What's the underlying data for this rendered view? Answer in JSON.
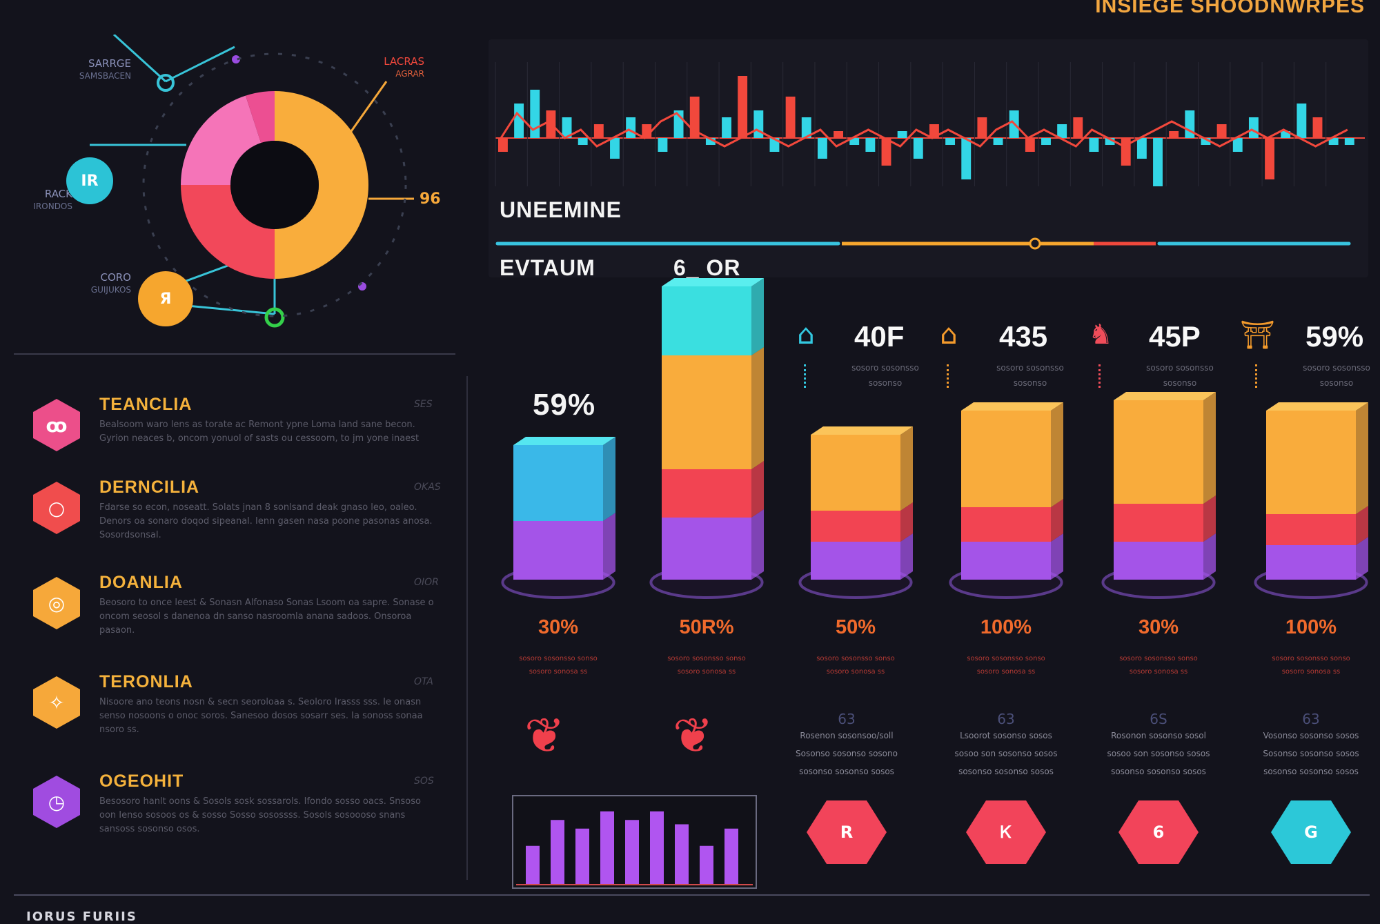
{
  "header": {
    "title": "INSIEGE SHOODNWRPES"
  },
  "donut": {
    "slices": [
      {
        "name": "orange",
        "value": 50,
        "color": "#f9ad3c"
      },
      {
        "name": "red",
        "value": 25,
        "color": "#f2485a"
      },
      {
        "name": "pink",
        "value": 20,
        "color": "#f574b8"
      },
      {
        "name": "magenta",
        "value": 5,
        "color": "#ec4f92"
      }
    ],
    "labels": [
      {
        "title": "SARRGE",
        "sub": "SAMSBACEN"
      },
      {
        "title": "LACRAS",
        "sub": "AGRAR"
      },
      {
        "title": "RACK",
        "sub": "IRONDOS"
      },
      {
        "title": "CORO",
        "sub": "GUIJUKOS"
      }
    ],
    "value_label": "96",
    "nodes": [
      {
        "text": "IR"
      },
      {
        "text": "Я"
      }
    ]
  },
  "list": {
    "items": [
      {
        "title": "TEANCLIA",
        "tag": "SES",
        "color": "#ec4f8a",
        "icon": "ꝏ",
        "body": "Bealsoom waro lens as torate ac Remont ypne Loma land sane becon. Gyrion neaces b, oncom yonuol of sasts ou cessoom, to jm yone inaest"
      },
      {
        "title": "DERNCILIA",
        "tag": "OKAS",
        "color": "#f04d4d",
        "icon": "○",
        "body": "Fdarse so econ, noseatt. Solats jnan 8 sonlsand deak gnaso leo, oaleo. Denors oa sonaro doqod sipeanal. Ienn gasen nasa poone pasonas anosa. Sosordsonsal."
      },
      {
        "title": "DOANLIA",
        "tag": "OIOR",
        "color": "#f6a83a",
        "icon": "◎",
        "body": "Beosoro to once leest & Sonasn Alfonaso Sonas Lsoom oa sapre. Sonase o oncom seosol s danenoa dn sanso nasroomla anana sadoos. Onsoroa pasaon."
      },
      {
        "title": "TERONLIA",
        "tag": "OTA",
        "color": "#f6a83a",
        "icon": "✧",
        "body": "Nisoore ano teons nosn & secn seoroloaa s. Seoloro Irasss sss. Ie onasn senso nosoons o onoc soros. Sanesoo dosos sosarr ses. Ia sonoss sonaa nsoro ss."
      },
      {
        "title": "OGEOHIT",
        "tag": "SOS",
        "color": "#a04ce0",
        "icon": "◷",
        "body": "Besosoro hanlt oons & Sosols sosk sossarols. Ifondo sosso oacs. Snsoso oon Ienso sosoos os & sosso Sosso sosossss. Sosols sosoooso snans sansoss sosonso osos."
      }
    ]
  },
  "chart_data": [
    {
      "type": "bar",
      "title": "UNEEMINE",
      "values": [
        -2,
        5,
        7,
        4,
        3,
        -1,
        2,
        -3,
        3,
        2,
        -2,
        4,
        6,
        -1,
        3,
        9,
        4,
        -2,
        6,
        3,
        -3,
        1,
        -1,
        -2,
        -4,
        1,
        -3,
        2,
        -1,
        -6,
        3,
        -1,
        4,
        -2,
        -1,
        2,
        3,
        -2,
        -1,
        -4,
        -3,
        -7,
        1,
        4,
        -1,
        2,
        -2,
        3,
        -6,
        1,
        5,
        3,
        -1,
        -1
      ],
      "line": [
        0,
        3,
        1,
        2,
        0,
        1,
        -1,
        0,
        1,
        0,
        2,
        3,
        1,
        0,
        -1,
        0,
        1,
        0,
        -1,
        0,
        1,
        -1,
        0,
        1,
        0,
        -1,
        1,
        0,
        1,
        0,
        -1,
        1,
        2,
        0,
        1,
        0,
        -1,
        1,
        0,
        -1,
        0,
        1,
        2,
        1,
        0,
        -1,
        0,
        1,
        0,
        1,
        0,
        -1,
        0,
        1
      ],
      "positive_color": "#33d6e6",
      "negative_color": "#33d6e6",
      "accent_color": "#f2483c"
    },
    {
      "type": "bar",
      "title": "mini-bars",
      "values": [
        45,
        75,
        65,
        85,
        75,
        85,
        70,
        45,
        65
      ],
      "color": "#b055f0"
    }
  ],
  "timeline": {
    "label": "EVTAUM",
    "marker_label": "6_ OR"
  },
  "stacks": {
    "headline": "59%",
    "columns": [
      {
        "pct": "30%",
        "sub": [
          "sosoro sosonsso sonso",
          "sosoro sonosa ss"
        ],
        "segments": [
          {
            "v": 85,
            "c": "#a454e8"
          },
          {
            "v": 110,
            "c": "#3ab8e8"
          }
        ],
        "top": "#55e6f0"
      },
      {
        "pct": "50R%",
        "sub": [
          "sosoro sosonsso sonso",
          "sosoro sonosa ss"
        ],
        "segments": [
          {
            "v": 90,
            "c": "#a454e8"
          },
          {
            "v": 70,
            "c": "#f24452"
          },
          {
            "v": 165,
            "c": "#f9ac3c"
          },
          {
            "v": 100,
            "c": "#3adfe0"
          }
        ],
        "top": "#5aeeee"
      },
      {
        "pct": "50%",
        "sub": [
          "sosoro sosonsso sonso",
          "sosoro sonosa ss"
        ],
        "segments": [
          {
            "v": 55,
            "c": "#a454e8"
          },
          {
            "v": 45,
            "c": "#f24452"
          },
          {
            "v": 110,
            "c": "#f9ac3c"
          }
        ],
        "top": "#fbc45a"
      },
      {
        "pct": "100%",
        "sub": [
          "sosoro sosonsso sonso",
          "sosoro sonosa ss"
        ],
        "segments": [
          {
            "v": 55,
            "c": "#a454e8"
          },
          {
            "v": 50,
            "c": "#f24452"
          },
          {
            "v": 140,
            "c": "#f9ac3c"
          }
        ],
        "top": "#fbc45a"
      },
      {
        "pct": "30%",
        "sub": [
          "sosoro sosonsso sonso",
          "sosoro sonosa ss"
        ],
        "segments": [
          {
            "v": 55,
            "c": "#a454e8"
          },
          {
            "v": 55,
            "c": "#f24452"
          },
          {
            "v": 150,
            "c": "#f9ac3c"
          }
        ],
        "top": "#fbc45a"
      },
      {
        "pct": "100%",
        "sub": [
          "sosoro sosonsso sonso",
          "sosoro sonosa ss"
        ],
        "segments": [
          {
            "v": 50,
            "c": "#a454e8"
          },
          {
            "v": 45,
            "c": "#f24452"
          },
          {
            "v": 150,
            "c": "#f9ac3c"
          }
        ],
        "top": "#fbc45a"
      }
    ]
  },
  "stats": [
    {
      "value": "40F",
      "sub": [
        "sosoro sosonsso",
        "sosonso"
      ],
      "color": "#33c8e0",
      "icon": "⌂"
    },
    {
      "value": "435",
      "sub": [
        "sosoro sosonsso",
        "sosonso"
      ],
      "color": "#f39a2c",
      "icon": "⌂"
    },
    {
      "value": "45P",
      "sub": [
        "sosoro sosonsso",
        "sosonso"
      ],
      "color": "#f04d5a",
      "icon": "♞"
    },
    {
      "value": "59%",
      "sub": [
        "sosoro sosonsso",
        "sosonso"
      ],
      "color": "#f39a2c",
      "icon": "⛩"
    }
  ],
  "blocks": [
    {
      "num": "63",
      "lines": [
        "Rosenon sosonsoo/soll",
        "Sosonso sosonso sosono",
        "sosonso sosonso sosos"
      ],
      "hex": "R",
      "color": "#f2445a"
    },
    {
      "num": "63",
      "lines": [
        "Lsoorot sosonso sosos",
        "sosoo son sosonso sosos",
        "sosonso sosonso sosos"
      ],
      "hex": "Ꮶ",
      "color": "#f2445a"
    },
    {
      "num": "6S",
      "lines": [
        "Rosonon sosonso sosol",
        "sosoo son sosonso sosos",
        "sosonso sosonso sosos"
      ],
      "hex": "6",
      "color": "#f2445a"
    },
    {
      "num": "63",
      "lines": [
        "Vosonso sosonso sosos",
        "Sosonso sosonso sosos",
        "sosonso sosonso sosos"
      ],
      "hex": "G",
      "color": "#2cc8d8"
    }
  ],
  "footer": {
    "text": "IORUS FURIIS"
  }
}
